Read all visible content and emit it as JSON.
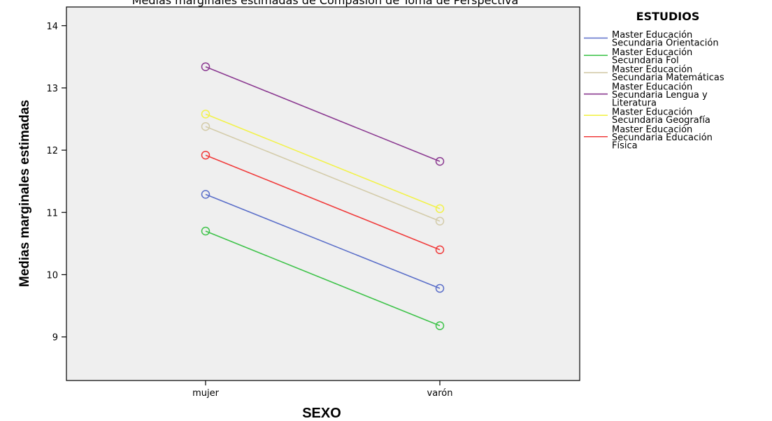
{
  "chart_data": {
    "type": "line",
    "title": "Medias marginales estimadas de Compasión de Toma de Perspectiva",
    "xlabel": "SEXO",
    "ylabel": "Medias marginales estimadas",
    "categories": [
      "mujer",
      "varón"
    ],
    "ylim": [
      8.3,
      14.3
    ],
    "yticks": [
      9,
      10,
      11,
      12,
      13,
      14
    ],
    "grid": false,
    "legend": {
      "title": "ESTUDIOS",
      "placement": "right"
    },
    "series": [
      {
        "name": "Master Educación Secundaria Orientación",
        "label_lines": [
          "Master Educación",
          "Secundaria Orientación"
        ],
        "color": "#5b6fc9",
        "values": [
          11.29,
          9.78
        ]
      },
      {
        "name": "Master Educación Secundaria Fol",
        "label_lines": [
          "Master Educación",
          "Secundaria Fol"
        ],
        "color": "#3fc34a",
        "values": [
          10.7,
          9.18
        ]
      },
      {
        "name": "Master Educación Secundaria Matemáticas",
        "label_lines": [
          "Master Educación",
          "Secundaria Matemáticas"
        ],
        "color": "#d4ccaa",
        "values": [
          12.38,
          10.86
        ]
      },
      {
        "name": "Master Educación Secundaria Lengua y Literatura",
        "label_lines": [
          "Master Educación",
          "Secundaria Lengua y",
          "Literatura"
        ],
        "color": "#8b3a91",
        "values": [
          13.34,
          11.82
        ]
      },
      {
        "name": "Master Educación Secundaria Geografía",
        "label_lines": [
          "Master Educación",
          "Secundaria Geografía"
        ],
        "color": "#f2f24a",
        "values": [
          12.58,
          11.06
        ]
      },
      {
        "name": "Master Educación Secundaria Educación Física",
        "label_lines": [
          "Master Educación",
          "Secundaria Educación",
          "Física"
        ],
        "color": "#f03c3c",
        "values": [
          11.92,
          10.4
        ]
      }
    ]
  }
}
